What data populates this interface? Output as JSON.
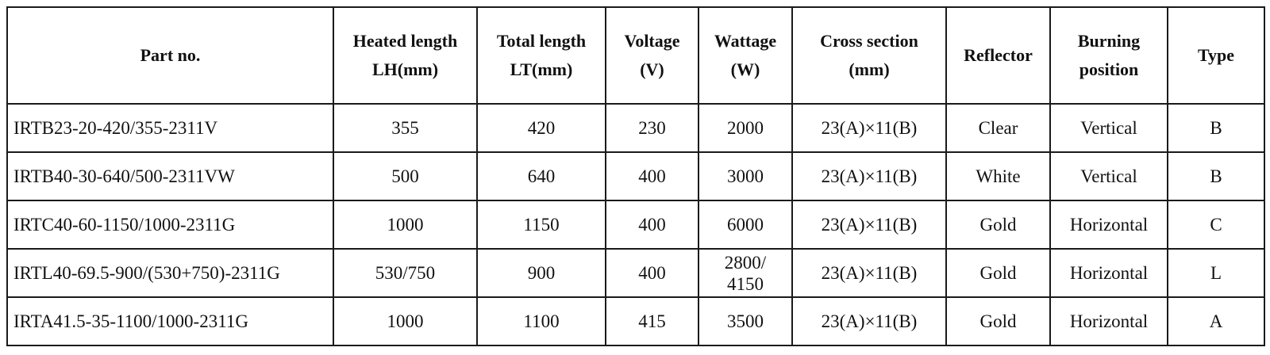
{
  "table": {
    "columns": [
      "Part no.",
      "Heated length\nLH(mm)",
      "Total length\nLT(mm)",
      "Voltage\n(V)",
      "Wattage\n(W)",
      "Cross section\n(mm)",
      "Reflector",
      "Burning\nposition",
      "Type"
    ],
    "rows": [
      [
        "IRTB23-20-420/355-2311V",
        "355",
        "420",
        "230",
        "2000",
        "23(A)×11(B)",
        "Clear",
        "Vertical",
        "B"
      ],
      [
        "IRTB40-30-640/500-2311VW",
        "500",
        "640",
        "400",
        "3000",
        "23(A)×11(B)",
        "White",
        "Vertical",
        "B"
      ],
      [
        "IRTC40-60-1150/1000-2311G",
        "1000",
        "1150",
        "400",
        "6000",
        "23(A)×11(B)",
        "Gold",
        "Horizontal",
        "C"
      ],
      [
        "IRTL40-69.5-900/(530+750)-2311G",
        "530/750",
        "900",
        "400",
        "2800/\n4150",
        "23(A)×11(B)",
        "Gold",
        "Horizontal",
        "L"
      ],
      [
        "IRTA41.5-35-1100/1000-2311G",
        "1000",
        "1100",
        "415",
        "3500",
        "23(A)×11(B)",
        "Gold",
        "Horizontal",
        "A"
      ]
    ]
  }
}
